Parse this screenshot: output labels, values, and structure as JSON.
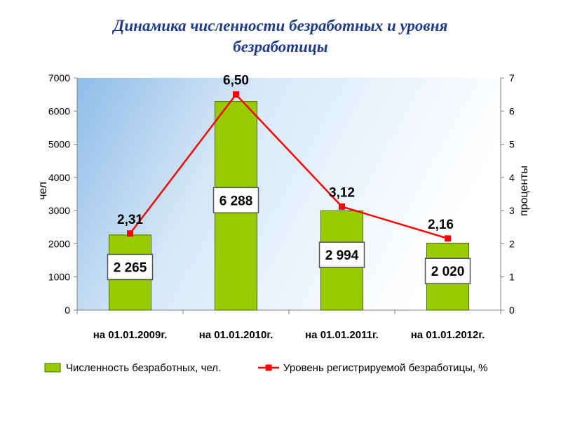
{
  "page": {
    "title": "Динамика численности безработных и уровня безработицы"
  },
  "chart_data": {
    "type": "bar",
    "title": "Динамика численности безработных и уровня безработицы",
    "categories": [
      "на 01.01.2009г.",
      "на 01.01.2010г.",
      "на 01.01.2011г.",
      "на 01.01.2012г."
    ],
    "series": [
      {
        "name": "Численность безработных, чел.",
        "type": "bar",
        "axis": "left",
        "color": "#99cc00",
        "values": [
          2265,
          6288,
          2994,
          2020
        ],
        "labels": [
          "2 265",
          "6 288",
          "2 994",
          "2 020"
        ]
      },
      {
        "name": "Уровень регистрируемой безработицы, %",
        "type": "line",
        "axis": "right",
        "color": "#ff0000",
        "values": [
          2.31,
          6.5,
          3.12,
          2.16
        ],
        "labels": [
          "2,31",
          "6,50",
          "3,12",
          "2,16"
        ]
      }
    ],
    "ylabel": "чел",
    "y2label": "проценты",
    "ylim": [
      0,
      7000
    ],
    "y2lim": [
      0,
      7
    ],
    "yticks": [
      "0",
      "1000",
      "2000",
      "3000",
      "4000",
      "5000",
      "6000",
      "7000"
    ],
    "y2ticks": [
      "0",
      "1",
      "2",
      "3",
      "4",
      "5",
      "6",
      "7"
    ],
    "legend": "bottom",
    "grid": false
  }
}
